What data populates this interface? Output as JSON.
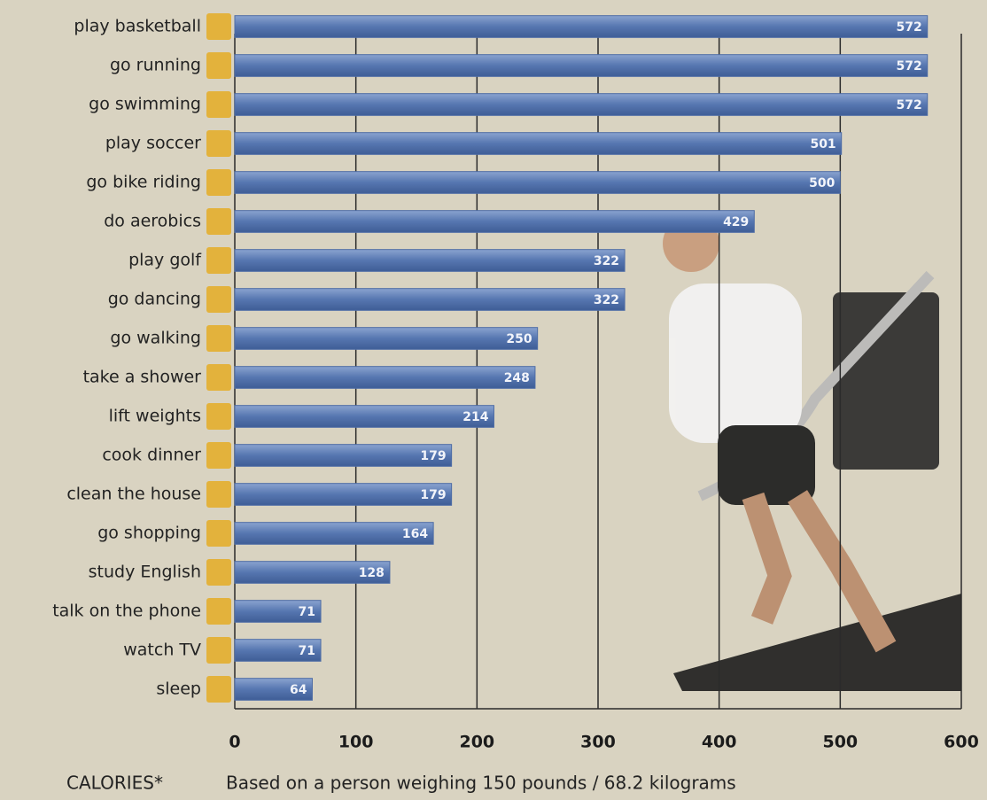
{
  "chart_data": {
    "type": "bar",
    "orientation": "horizontal",
    "categories": [
      "play basketball",
      "go running",
      "go swimming",
      "play soccer",
      "go bike riding",
      "do aerobics",
      "play golf",
      "go dancing",
      "go walking",
      "take a shower",
      "lift weights",
      "cook dinner",
      "clean the house",
      "go shopping",
      "study English",
      "talk on the phone",
      "watch TV",
      "sleep"
    ],
    "values": [
      572,
      572,
      572,
      501,
      500,
      429,
      322,
      322,
      250,
      248,
      214,
      179,
      179,
      164,
      128,
      71,
      71,
      64
    ],
    "color": "#4d6ca6",
    "xlim": [
      0,
      600
    ],
    "xticks": [
      0,
      100,
      200,
      300,
      400,
      500,
      600
    ],
    "grid": true,
    "xlabel": "CALORIES*",
    "footnote": "Based on a person weighing 150 pounds / 68.2 kilograms"
  }
}
